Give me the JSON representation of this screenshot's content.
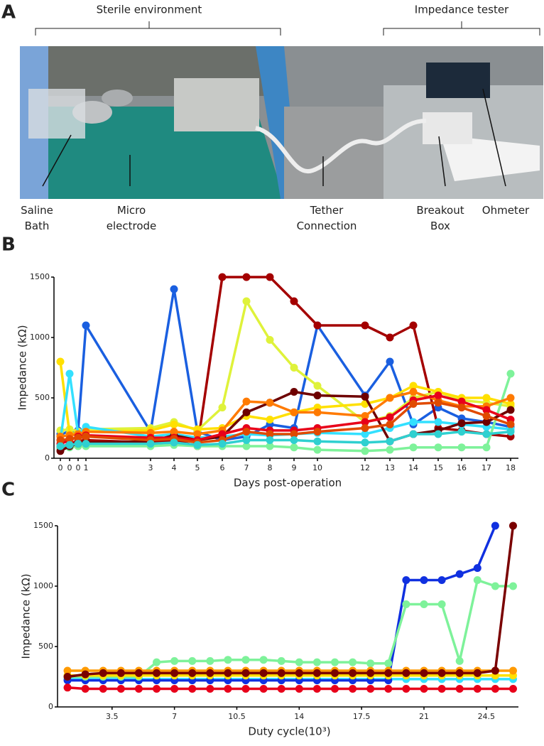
{
  "photo": {
    "panel": "A",
    "brackets": [
      "Sterile environment",
      "Impedance tester"
    ],
    "labels": [
      [
        "Saline",
        "Bath"
      ],
      [
        "Micro",
        "electrode"
      ],
      [
        "Tether",
        "Connection"
      ],
      [
        "Breakout",
        "Box"
      ],
      [
        "Ohmeter"
      ]
    ]
  },
  "chart_data": [
    {
      "type": "line",
      "panel": "B",
      "ylabel": "Impedance (kΩ)",
      "xlabel": "Days post-operation",
      "categories": [
        "0",
        "0",
        "0",
        "1",
        "3",
        "4",
        "5",
        "6",
        "7",
        "8",
        "9",
        "10",
        "12",
        "13",
        "14",
        "15",
        "16",
        "17",
        "18"
      ],
      "ylim": [
        0,
        1500
      ],
      "yticks": [
        0,
        500,
        1000,
        1500
      ],
      "series": [
        {
          "color": "#1a5fe0",
          "values": [
            200,
            220,
            230,
            1100,
            220,
            1400,
            220,
            150,
            180,
            280,
            250,
            1100,
            520,
            800,
            280,
            420,
            330,
            300,
            260
          ]
        },
        {
          "color": "#a40000",
          "values": [
            90,
            120,
            140,
            150,
            130,
            150,
            100,
            1500,
            1500,
            1500,
            1300,
            1100,
            1100,
            1000,
            1100,
            250,
            230,
            200,
            180
          ]
        },
        {
          "color": "#dff23a",
          "values": [
            230,
            240,
            220,
            240,
            250,
            300,
            230,
            420,
            1300,
            980,
            750,
            600,
            300,
            350,
            500,
            550,
            480,
            460,
            430
          ]
        },
        {
          "color": "#ffe000",
          "values": [
            800,
            200,
            210,
            220,
            230,
            280,
            240,
            250,
            350,
            320,
            380,
            420,
            450,
            500,
            600,
            550,
            500,
            500,
            450
          ]
        },
        {
          "color": "#33e0ff",
          "values": [
            150,
            700,
            200,
            260,
            180,
            200,
            170,
            180,
            200,
            190,
            200,
            210,
            200,
            250,
            300,
            300,
            280,
            260,
            240
          ]
        },
        {
          "color": "#7ef29a",
          "values": [
            80,
            90,
            100,
            100,
            100,
            110,
            100,
            100,
            100,
            100,
            90,
            70,
            60,
            70,
            90,
            90,
            90,
            90,
            700
          ]
        },
        {
          "color": "#6e0000",
          "values": [
            60,
            100,
            120,
            130,
            140,
            190,
            150,
            180,
            380,
            460,
            550,
            520,
            510,
            140,
            200,
            230,
            290,
            300,
            400
          ]
        },
        {
          "color": "#ff7a00",
          "values": [
            180,
            190,
            200,
            220,
            210,
            220,
            200,
            230,
            470,
            460,
            380,
            380,
            350,
            500,
            550,
            480,
            430,
            430,
            500
          ]
        },
        {
          "color": "#e8001a",
          "values": [
            120,
            150,
            180,
            190,
            170,
            170,
            150,
            200,
            250,
            230,
            230,
            250,
            300,
            340,
            480,
            520,
            470,
            400,
            320
          ]
        },
        {
          "color": "#e04a00",
          "values": [
            150,
            160,
            170,
            180,
            150,
            160,
            130,
            150,
            220,
            200,
            200,
            220,
            250,
            280,
            450,
            460,
            420,
            350,
            280
          ]
        },
        {
          "color": "#2fd0d0",
          "values": [
            100,
            110,
            120,
            120,
            120,
            130,
            110,
            120,
            150,
            150,
            150,
            140,
            130,
            140,
            200,
            200,
            220,
            200,
            220
          ]
        }
      ]
    },
    {
      "type": "line",
      "panel": "C",
      "ylabel": "Impedance (kΩ)",
      "xlabel": "Duty cycle(10³)",
      "x": [
        1,
        2,
        3,
        4,
        5,
        6,
        7,
        8,
        9,
        10,
        11,
        12,
        13,
        14,
        15,
        16,
        17,
        18,
        19,
        20,
        21,
        22,
        23,
        24,
        25,
        26
      ],
      "xlim": [
        0.6,
        26.3
      ],
      "xticks": [
        3.5,
        7,
        10.5,
        14,
        17.5,
        21,
        24.5
      ],
      "ylim": [
        0,
        1500
      ],
      "yticks": [
        0,
        500,
        1000,
        1500
      ],
      "series": [
        {
          "color": "#33e0ff",
          "values": [
            230,
            230,
            230,
            230,
            230,
            230,
            230,
            230,
            230,
            230,
            230,
            230,
            230,
            230,
            230,
            230,
            230,
            230,
            230,
            230,
            230,
            230,
            230,
            230,
            230,
            230
          ]
        },
        {
          "color": "#1030e0",
          "values": [
            220,
            220,
            220,
            220,
            220,
            220,
            220,
            220,
            220,
            220,
            220,
            220,
            220,
            220,
            220,
            220,
            220,
            220,
            220,
            1050,
            1050,
            1050,
            1100,
            1150,
            1500,
            null
          ]
        },
        {
          "color": "#7ef29a",
          "values": [
            250,
            250,
            250,
            250,
            250,
            370,
            380,
            380,
            380,
            390,
            390,
            390,
            380,
            370,
            370,
            370,
            370,
            360,
            360,
            850,
            850,
            850,
            380,
            1050,
            1000,
            1000
          ]
        },
        {
          "color": "#ffe000",
          "values": [
            260,
            260,
            260,
            260,
            260,
            260,
            260,
            260,
            260,
            260,
            260,
            260,
            260,
            260,
            260,
            260,
            260,
            260,
            260,
            260,
            260,
            260,
            260,
            260,
            260,
            260
          ]
        },
        {
          "color": "#ff9a00",
          "values": [
            300,
            300,
            300,
            300,
            300,
            300,
            300,
            300,
            300,
            300,
            300,
            300,
            300,
            300,
            300,
            300,
            300,
            300,
            300,
            300,
            300,
            300,
            300,
            300,
            300,
            300
          ]
        },
        {
          "color": "#e8001a",
          "values": [
            160,
            150,
            150,
            150,
            150,
            150,
            150,
            150,
            150,
            150,
            150,
            150,
            150,
            150,
            150,
            150,
            150,
            150,
            150,
            150,
            150,
            150,
            150,
            150,
            150,
            150
          ]
        },
        {
          "color": "#7a0000",
          "values": [
            250,
            270,
            280,
            280,
            280,
            280,
            280,
            280,
            280,
            280,
            280,
            280,
            280,
            280,
            280,
            280,
            280,
            280,
            280,
            280,
            280,
            280,
            280,
            280,
            300,
            1500
          ]
        }
      ]
    }
  ]
}
